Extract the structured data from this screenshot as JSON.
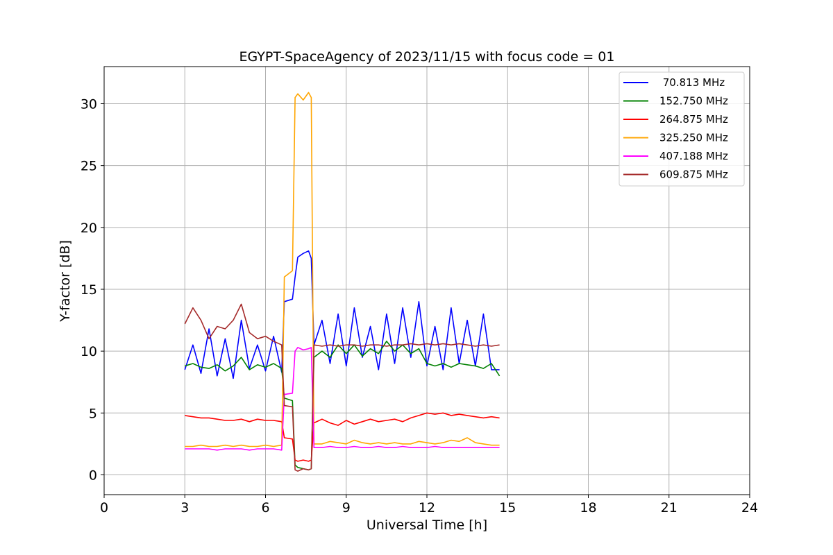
{
  "chart_data": {
    "type": "line",
    "title": "EGYPT-SpaceAgency of 2023/11/15 with focus code = 01",
    "xlabel": "Universal Time [h]",
    "ylabel": "Y-factor [dB]",
    "xlim": [
      0,
      24
    ],
    "ylim": [
      -1.6,
      33
    ],
    "xticks": [
      0,
      3,
      6,
      9,
      12,
      15,
      18,
      21,
      24
    ],
    "yticks": [
      0,
      5,
      10,
      15,
      20,
      25,
      30
    ],
    "grid": true,
    "legend_position": "top-right",
    "series": [
      {
        "name": " 70.813 MHz",
        "color": "#0000ff",
        "x": [
          3.0,
          3.3,
          3.6,
          3.9,
          4.2,
          4.5,
          4.8,
          5.1,
          5.4,
          5.7,
          6.0,
          6.3,
          6.6,
          6.7,
          7.0,
          7.1,
          7.2,
          7.4,
          7.6,
          7.7,
          7.8,
          8.1,
          8.4,
          8.7,
          9.0,
          9.3,
          9.6,
          9.9,
          10.2,
          10.5,
          10.8,
          11.1,
          11.4,
          11.7,
          12.0,
          12.3,
          12.6,
          12.9,
          13.2,
          13.5,
          13.8,
          14.1,
          14.4,
          14.7
        ],
        "y": [
          8.5,
          10.5,
          8.2,
          11.8,
          8.0,
          11.0,
          7.8,
          12.5,
          8.6,
          10.5,
          8.4,
          11.2,
          8.3,
          14.0,
          14.2,
          16.0,
          17.6,
          17.9,
          18.1,
          17.5,
          10.5,
          12.5,
          9.0,
          13.0,
          8.8,
          13.5,
          9.5,
          12.0,
          8.5,
          13.0,
          9.0,
          13.5,
          9.5,
          14.0,
          8.8,
          12.0,
          8.5,
          13.5,
          9.0,
          12.5,
          8.8,
          13.0,
          8.5,
          8.5
        ]
      },
      {
        "name": "152.750 MHz",
        "color": "#008000",
        "x": [
          3.0,
          3.3,
          3.6,
          3.9,
          4.2,
          4.5,
          4.8,
          5.1,
          5.4,
          5.7,
          6.0,
          6.3,
          6.6,
          6.7,
          7.0,
          7.1,
          7.2,
          7.4,
          7.6,
          7.7,
          7.8,
          8.1,
          8.4,
          8.7,
          9.0,
          9.3,
          9.6,
          9.9,
          10.2,
          10.5,
          10.8,
          11.1,
          11.4,
          11.7,
          12.0,
          12.3,
          12.6,
          12.9,
          13.2,
          13.5,
          13.8,
          14.1,
          14.4,
          14.7
        ],
        "y": [
          8.8,
          9.0,
          8.7,
          8.6,
          8.9,
          8.4,
          8.8,
          9.5,
          8.5,
          8.9,
          8.7,
          9.0,
          8.6,
          6.2,
          6.0,
          0.8,
          0.6,
          0.5,
          0.4,
          0.5,
          9.5,
          10.0,
          9.5,
          10.5,
          9.8,
          10.5,
          9.6,
          10.2,
          9.8,
          10.8,
          10.0,
          10.5,
          9.8,
          10.2,
          9.0,
          8.8,
          9.0,
          8.7,
          9.0,
          8.9,
          8.8,
          8.6,
          9.0,
          8.0
        ]
      },
      {
        "name": "264.875 MHz",
        "color": "#ff0000",
        "x": [
          3.0,
          3.3,
          3.6,
          3.9,
          4.2,
          4.5,
          4.8,
          5.1,
          5.4,
          5.7,
          6.0,
          6.3,
          6.6,
          6.7,
          7.0,
          7.1,
          7.2,
          7.4,
          7.6,
          7.7,
          7.8,
          8.1,
          8.4,
          8.7,
          9.0,
          9.3,
          9.6,
          9.9,
          10.2,
          10.5,
          10.8,
          11.1,
          11.4,
          11.7,
          12.0,
          12.3,
          12.6,
          12.9,
          13.2,
          13.5,
          13.8,
          14.1,
          14.4,
          14.7
        ],
        "y": [
          4.8,
          4.7,
          4.6,
          4.6,
          4.5,
          4.4,
          4.4,
          4.5,
          4.3,
          4.5,
          4.4,
          4.4,
          4.3,
          3.0,
          2.9,
          1.2,
          1.1,
          1.2,
          1.1,
          1.2,
          4.2,
          4.5,
          4.2,
          4.0,
          4.4,
          4.1,
          4.3,
          4.5,
          4.3,
          4.4,
          4.5,
          4.3,
          4.6,
          4.8,
          5.0,
          4.9,
          5.0,
          4.8,
          4.9,
          4.8,
          4.7,
          4.6,
          4.7,
          4.6
        ]
      },
      {
        "name": "325.250 MHz",
        "color": "#ffa500",
        "x": [
          3.0,
          3.3,
          3.6,
          3.9,
          4.2,
          4.5,
          4.8,
          5.1,
          5.4,
          5.7,
          6.0,
          6.3,
          6.6,
          6.7,
          7.0,
          7.1,
          7.2,
          7.4,
          7.6,
          7.7,
          7.8,
          8.1,
          8.4,
          8.7,
          9.0,
          9.3,
          9.6,
          9.9,
          10.2,
          10.5,
          10.8,
          11.1,
          11.4,
          11.7,
          12.0,
          12.3,
          12.6,
          12.9,
          13.2,
          13.5,
          13.8,
          14.1,
          14.4,
          14.7
        ],
        "y": [
          2.3,
          2.3,
          2.4,
          2.3,
          2.3,
          2.4,
          2.3,
          2.4,
          2.3,
          2.3,
          2.4,
          2.3,
          2.4,
          16.0,
          16.5,
          30.5,
          30.8,
          30.3,
          30.9,
          30.5,
          2.5,
          2.5,
          2.7,
          2.6,
          2.5,
          2.8,
          2.6,
          2.5,
          2.6,
          2.5,
          2.6,
          2.5,
          2.5,
          2.7,
          2.6,
          2.5,
          2.6,
          2.8,
          2.7,
          3.0,
          2.6,
          2.5,
          2.4,
          2.4
        ]
      },
      {
        "name": "407.188 MHz",
        "color": "#ff00ff",
        "x": [
          3.0,
          3.3,
          3.6,
          3.9,
          4.2,
          4.5,
          4.8,
          5.1,
          5.4,
          5.7,
          6.0,
          6.3,
          6.6,
          6.7,
          7.0,
          7.1,
          7.2,
          7.4,
          7.6,
          7.7,
          7.8,
          8.1,
          8.4,
          8.7,
          9.0,
          9.3,
          9.6,
          9.9,
          10.2,
          10.5,
          10.8,
          11.1,
          11.4,
          11.7,
          12.0,
          12.3,
          12.6,
          12.9,
          13.2,
          13.5,
          13.8,
          14.1,
          14.4,
          14.7
        ],
        "y": [
          2.1,
          2.1,
          2.1,
          2.1,
          2.0,
          2.1,
          2.1,
          2.1,
          2.0,
          2.1,
          2.1,
          2.1,
          2.0,
          6.5,
          6.6,
          10.0,
          10.3,
          10.1,
          10.2,
          10.3,
          2.2,
          2.2,
          2.3,
          2.2,
          2.2,
          2.3,
          2.2,
          2.2,
          2.3,
          2.2,
          2.2,
          2.3,
          2.2,
          2.2,
          2.2,
          2.3,
          2.2,
          2.2,
          2.2,
          2.2,
          2.2,
          2.2,
          2.2,
          2.2
        ]
      },
      {
        "name": "609.875 MHz",
        "color": "#a52a2a",
        "x": [
          3.0,
          3.3,
          3.6,
          3.9,
          4.2,
          4.5,
          4.8,
          5.1,
          5.4,
          5.7,
          6.0,
          6.3,
          6.6,
          6.7,
          7.0,
          7.1,
          7.2,
          7.4,
          7.6,
          7.7,
          7.8,
          8.1,
          8.4,
          8.7,
          9.0,
          9.3,
          9.6,
          9.9,
          10.2,
          10.5,
          10.8,
          11.1,
          11.4,
          11.7,
          12.0,
          12.3,
          12.6,
          12.9,
          13.2,
          13.5,
          13.8,
          14.1,
          14.4,
          14.7
        ],
        "y": [
          12.2,
          13.5,
          12.5,
          11.0,
          12.0,
          11.8,
          12.5,
          13.8,
          11.5,
          11.0,
          11.2,
          10.8,
          10.5,
          5.6,
          5.5,
          0.4,
          0.3,
          0.5,
          0.4,
          0.5,
          10.5,
          10.4,
          10.5,
          10.4,
          10.5,
          10.5,
          10.4,
          10.5,
          10.5,
          10.4,
          10.5,
          10.5,
          10.6,
          10.5,
          10.6,
          10.5,
          10.6,
          10.5,
          10.6,
          10.5,
          10.4,
          10.5,
          10.4,
          10.5
        ]
      }
    ]
  }
}
